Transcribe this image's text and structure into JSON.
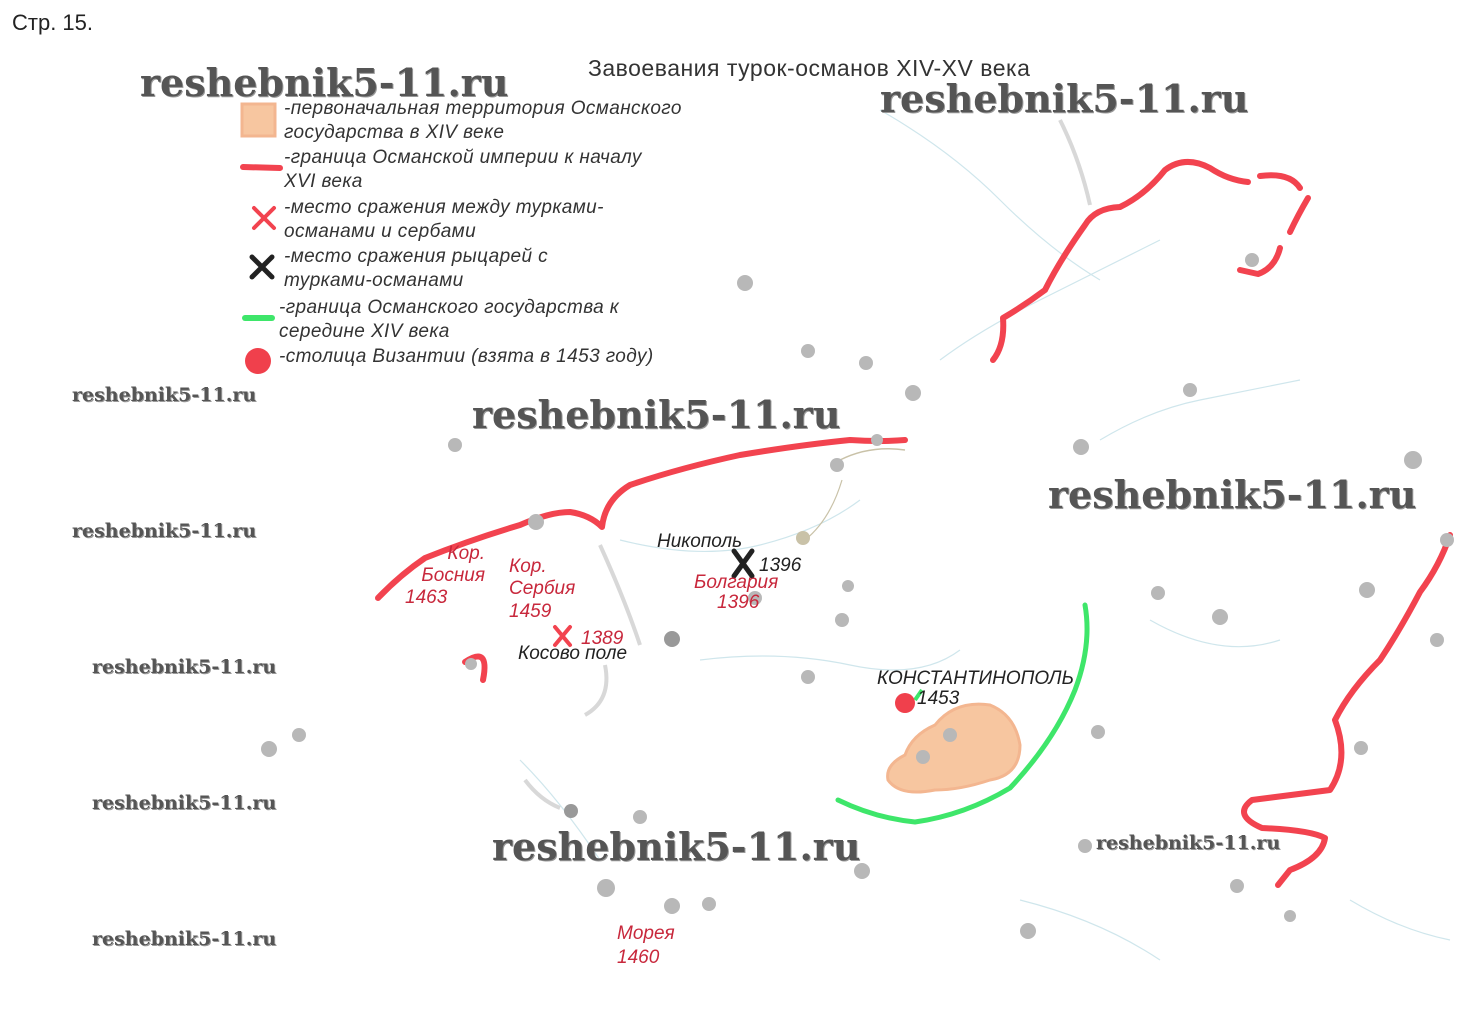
{
  "page_label": "Стр. 15.",
  "map": {
    "title": "Завоевания турок-османов XIV-XV века",
    "colors": {
      "initial_territory": "#f7c6a0",
      "empire_border_16c": "#f2434f",
      "serbian_battle": "#f2434f",
      "knights_battle": "#222222",
      "state_border_14c": "#3ee66a",
      "byzantine_capital": "#f0404c",
      "city": "#b8b8b8"
    },
    "legend": [
      {
        "icon": "orange-square-icon",
        "text": "-первоначальная территория Османского государства в XIV веке"
      },
      {
        "icon": "red-line-icon",
        "text": "-граница Османской империи к началу XVI века"
      },
      {
        "icon": "red-cross-icon",
        "text": "-место сражения между турками-османами и сербами"
      },
      {
        "icon": "black-cross-icon",
        "text": "-место сражения рыцарей с турками-османами"
      },
      {
        "icon": "green-line-icon",
        "text": "-граница Османского государства к середине XIV века"
      },
      {
        "icon": "red-dot-icon",
        "text": "-столица Византии (взята в 1453 году)"
      }
    ],
    "labels": {
      "bosnia": "Кор. Босния",
      "bosnia_year": "1463",
      "serbia": "Кор. Сербия",
      "serbia_year": "1459",
      "kosovo_year": "1389",
      "kosovo": "Косово поле",
      "nikopol": "Никополь",
      "nikopol_year": "1396",
      "bulgaria": "Болгария",
      "bulgaria_year": "1396",
      "constantinople": "КОНСТАНТИНОПОЛЬ",
      "constantinople_year": "1453",
      "morea": "Морея",
      "morea_year": "1460"
    }
  },
  "watermark": "reshebnik5-11.ru"
}
